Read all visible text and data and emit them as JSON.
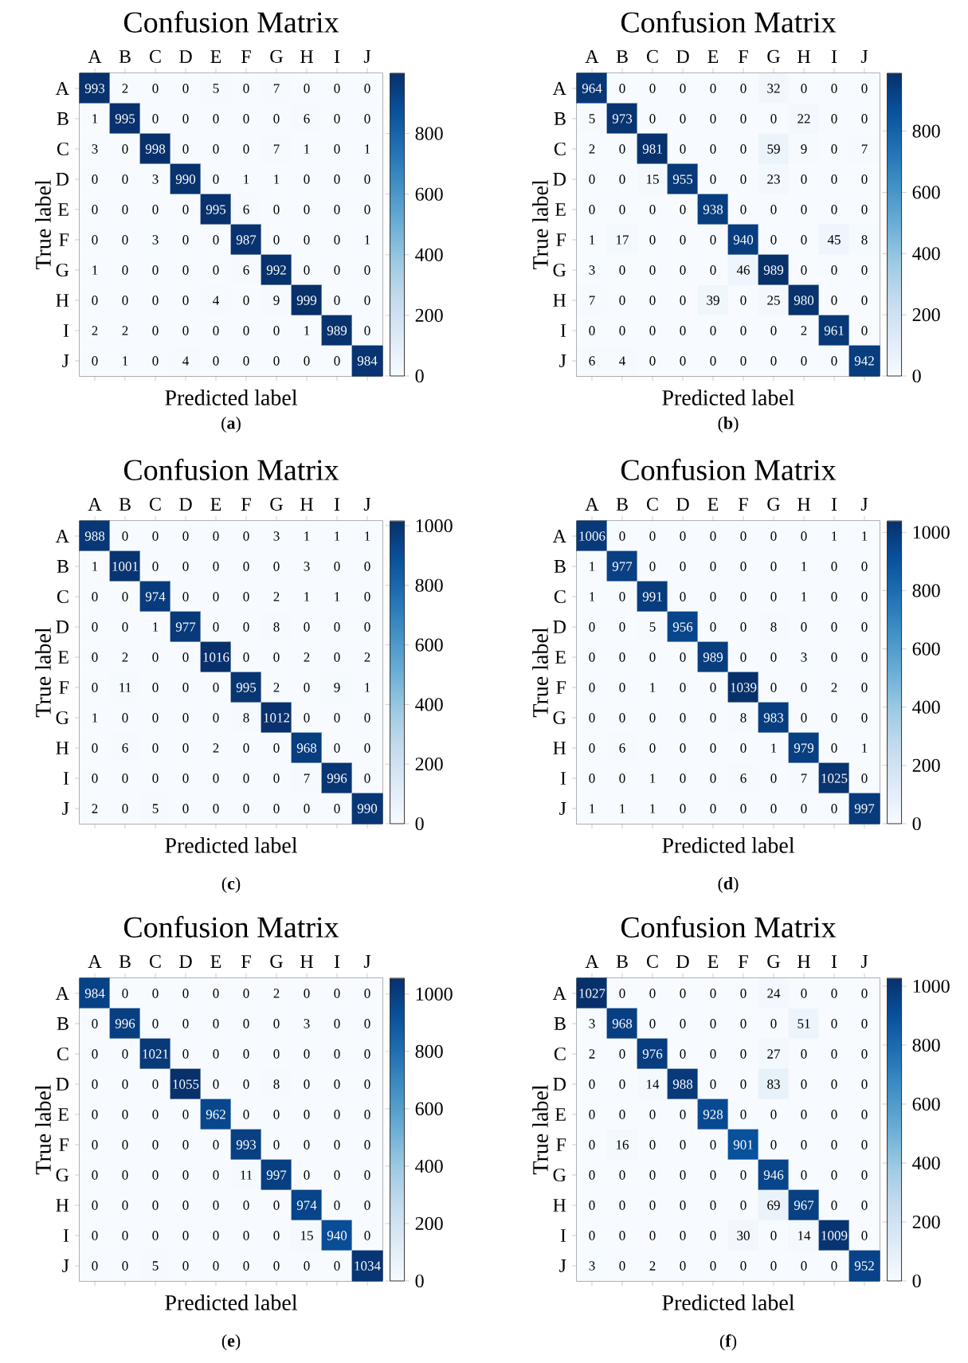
{
  "chart_data": [
    {
      "type": "heatmap",
      "title": "Confusion Matrix",
      "xlabel": "Predicted label",
      "ylabel": "True label",
      "categories": [
        "A",
        "B",
        "C",
        "D",
        "E",
        "F",
        "G",
        "H",
        "I",
        "J"
      ],
      "y_categories": [
        "A",
        "B",
        "C",
        "D",
        "E",
        "F",
        "G",
        "H",
        "I",
        "J"
      ],
      "cells": [
        [
          993,
          2,
          0,
          0,
          5,
          0,
          7,
          0,
          0,
          0
        ],
        [
          1,
          995,
          0,
          0,
          0,
          0,
          0,
          6,
          0,
          0
        ],
        [
          3,
          0,
          998,
          0,
          0,
          0,
          7,
          1,
          0,
          1
        ],
        [
          0,
          0,
          3,
          990,
          0,
          1,
          1,
          0,
          0,
          0
        ],
        [
          0,
          0,
          0,
          0,
          995,
          6,
          0,
          0,
          0,
          0
        ],
        [
          0,
          0,
          3,
          0,
          0,
          987,
          0,
          0,
          0,
          1
        ],
        [
          1,
          0,
          0,
          0,
          0,
          6,
          992,
          0,
          0,
          0
        ],
        [
          0,
          0,
          0,
          0,
          4,
          0,
          9,
          999,
          0,
          0
        ],
        [
          2,
          2,
          0,
          0,
          0,
          0,
          0,
          1,
          989,
          0
        ],
        [
          0,
          1,
          0,
          4,
          0,
          0,
          0,
          0,
          0,
          984
        ]
      ],
      "clim": [
        0,
        999
      ],
      "data_labels": true,
      "cticks": [
        0,
        200,
        400,
        600,
        800
      ],
      "annotations": [
        "(**a**)"
      ]
    },
    {
      "type": "heatmap",
      "title": "Confusion Matrix",
      "xlabel": "Predicted label",
      "ylabel": "True label",
      "categories": [
        "A",
        "B",
        "C",
        "D",
        "E",
        "F",
        "G",
        "H",
        "I",
        "J"
      ],
      "y_categories": [
        "A",
        "B",
        "C",
        "D",
        "E",
        "F",
        "G",
        "H",
        "I",
        "J"
      ],
      "cells": [
        [
          964,
          0,
          0,
          0,
          0,
          0,
          32,
          0,
          0,
          0
        ],
        [
          5,
          973,
          0,
          0,
          0,
          0,
          0,
          22,
          0,
          0
        ],
        [
          2,
          0,
          981,
          0,
          0,
          0,
          59,
          9,
          0,
          7
        ],
        [
          0,
          0,
          15,
          955,
          0,
          0,
          23,
          0,
          0,
          0
        ],
        [
          0,
          0,
          0,
          0,
          938,
          0,
          0,
          0,
          0,
          0
        ],
        [
          1,
          17,
          0,
          0,
          0,
          940,
          0,
          0,
          45,
          8
        ],
        [
          3,
          0,
          0,
          0,
          0,
          46,
          989,
          0,
          0,
          0
        ],
        [
          7,
          0,
          0,
          0,
          39,
          0,
          25,
          980,
          0,
          0
        ],
        [
          0,
          0,
          0,
          0,
          0,
          0,
          0,
          2,
          961,
          0
        ],
        [
          6,
          4,
          0,
          0,
          0,
          0,
          0,
          0,
          0,
          942
        ]
      ],
      "clim": [
        0,
        989
      ],
      "data_labels": true,
      "cticks": [
        0,
        200,
        400,
        600,
        800
      ],
      "annotations": [
        "(**b**)"
      ]
    },
    {
      "type": "heatmap",
      "title": "Confusion Matrix",
      "xlabel": "Predicted label",
      "ylabel": "True label",
      "categories": [
        "A",
        "B",
        "C",
        "D",
        "E",
        "F",
        "G",
        "H",
        "I",
        "J"
      ],
      "y_categories": [
        "A",
        "B",
        "C",
        "D",
        "E",
        "F",
        "G",
        "H",
        "I",
        "J"
      ],
      "cells": [
        [
          988,
          0,
          0,
          0,
          0,
          0,
          3,
          1,
          1,
          1
        ],
        [
          1,
          1001,
          0,
          0,
          0,
          0,
          0,
          3,
          0,
          0
        ],
        [
          0,
          0,
          974,
          0,
          0,
          0,
          2,
          1,
          1,
          0
        ],
        [
          0,
          0,
          1,
          977,
          0,
          0,
          8,
          0,
          0,
          0
        ],
        [
          0,
          2,
          0,
          0,
          1016,
          0,
          0,
          2,
          0,
          2
        ],
        [
          0,
          11,
          0,
          0,
          0,
          995,
          2,
          0,
          9,
          1
        ],
        [
          1,
          0,
          0,
          0,
          0,
          8,
          1012,
          0,
          0,
          0
        ],
        [
          0,
          6,
          0,
          0,
          2,
          0,
          0,
          968,
          0,
          0
        ],
        [
          0,
          0,
          0,
          0,
          0,
          0,
          0,
          7,
          996,
          0
        ],
        [
          2,
          0,
          5,
          0,
          0,
          0,
          0,
          0,
          0,
          990
        ]
      ],
      "clim": [
        0,
        1016
      ],
      "data_labels": true,
      "cticks": [
        0,
        200,
        400,
        600,
        800,
        1000
      ],
      "annotations": [
        "(**c**)"
      ]
    },
    {
      "type": "heatmap",
      "title": "Confusion Matrix",
      "xlabel": "Predicted label",
      "ylabel": "True label",
      "categories": [
        "A",
        "B",
        "C",
        "D",
        "E",
        "F",
        "G",
        "H",
        "I",
        "J"
      ],
      "y_categories": [
        "A",
        "B",
        "C",
        "D",
        "E",
        "F",
        "G",
        "H",
        "I",
        "J"
      ],
      "cells": [
        [
          1006,
          0,
          0,
          0,
          0,
          0,
          0,
          0,
          1,
          1
        ],
        [
          1,
          977,
          0,
          0,
          0,
          0,
          0,
          1,
          0,
          0
        ],
        [
          1,
          0,
          991,
          0,
          0,
          0,
          0,
          1,
          0,
          0
        ],
        [
          0,
          0,
          5,
          956,
          0,
          0,
          8,
          0,
          0,
          0
        ],
        [
          0,
          0,
          0,
          0,
          989,
          0,
          0,
          3,
          0,
          0
        ],
        [
          0,
          0,
          1,
          0,
          0,
          1039,
          0,
          0,
          2,
          0
        ],
        [
          0,
          0,
          0,
          0,
          0,
          8,
          983,
          0,
          0,
          0
        ],
        [
          0,
          6,
          0,
          0,
          0,
          0,
          1,
          979,
          0,
          1
        ],
        [
          0,
          0,
          1,
          0,
          0,
          6,
          0,
          7,
          1025,
          0
        ],
        [
          1,
          1,
          1,
          0,
          0,
          0,
          0,
          0,
          0,
          997
        ]
      ],
      "clim": [
        0,
        1039
      ],
      "data_labels": true,
      "cticks": [
        0,
        200,
        400,
        600,
        800,
        1000
      ],
      "annotations": [
        "(**d**)"
      ]
    },
    {
      "type": "heatmap",
      "title": "Confusion Matrix",
      "xlabel": "Predicted label",
      "ylabel": "True label",
      "categories": [
        "A",
        "B",
        "C",
        "D",
        "E",
        "F",
        "G",
        "H",
        "I",
        "J"
      ],
      "y_categories": [
        "A",
        "B",
        "C",
        "D",
        "E",
        "F",
        "G",
        "H",
        "I",
        "J"
      ],
      "cells": [
        [
          984,
          0,
          0,
          0,
          0,
          0,
          2,
          0,
          0,
          0
        ],
        [
          0,
          996,
          0,
          0,
          0,
          0,
          0,
          3,
          0,
          0
        ],
        [
          0,
          0,
          1021,
          0,
          0,
          0,
          0,
          0,
          0,
          0
        ],
        [
          0,
          0,
          0,
          1055,
          0,
          0,
          8,
          0,
          0,
          0
        ],
        [
          0,
          0,
          0,
          0,
          962,
          0,
          0,
          0,
          0,
          0
        ],
        [
          0,
          0,
          0,
          0,
          0,
          993,
          0,
          0,
          0,
          0
        ],
        [
          0,
          0,
          0,
          0,
          0,
          11,
          997,
          0,
          0,
          0
        ],
        [
          0,
          0,
          0,
          0,
          0,
          0,
          0,
          974,
          0,
          0
        ],
        [
          0,
          0,
          0,
          0,
          0,
          0,
          0,
          15,
          940,
          0
        ],
        [
          0,
          0,
          5,
          0,
          0,
          0,
          0,
          0,
          0,
          1034
        ]
      ],
      "clim": [
        0,
        1055
      ],
      "data_labels": true,
      "cticks": [
        0,
        200,
        400,
        600,
        800,
        1000
      ],
      "annotations": [
        "(**e**)"
      ]
    },
    {
      "type": "heatmap",
      "title": "Confusion Matrix",
      "xlabel": "Predicted label",
      "ylabel": "True label",
      "categories": [
        "A",
        "B",
        "C",
        "D",
        "E",
        "F",
        "G",
        "H",
        "I",
        "J"
      ],
      "y_categories": [
        "A",
        "B",
        "C",
        "D",
        "E",
        "F",
        "G",
        "H",
        "I",
        "J"
      ],
      "cells": [
        [
          1027,
          0,
          0,
          0,
          0,
          0,
          24,
          0,
          0,
          0
        ],
        [
          3,
          968,
          0,
          0,
          0,
          0,
          0,
          51,
          0,
          0
        ],
        [
          2,
          0,
          976,
          0,
          0,
          0,
          27,
          0,
          0,
          0
        ],
        [
          0,
          0,
          14,
          988,
          0,
          0,
          83,
          0,
          0,
          0
        ],
        [
          0,
          0,
          0,
          0,
          928,
          0,
          0,
          0,
          0,
          0
        ],
        [
          0,
          16,
          0,
          0,
          0,
          901,
          0,
          0,
          0,
          0
        ],
        [
          0,
          0,
          0,
          0,
          0,
          0,
          946,
          0,
          0,
          0
        ],
        [
          0,
          0,
          0,
          0,
          0,
          0,
          69,
          967,
          0,
          0
        ],
        [
          0,
          0,
          0,
          0,
          0,
          30,
          0,
          14,
          1009,
          0
        ],
        [
          3,
          0,
          2,
          0,
          0,
          0,
          0,
          0,
          0,
          952
        ]
      ],
      "clim": [
        0,
        1027
      ],
      "data_labels": true,
      "cticks": [
        0,
        200,
        400,
        600,
        800,
        1000
      ],
      "annotations": [
        "(**f**)"
      ]
    }
  ]
}
